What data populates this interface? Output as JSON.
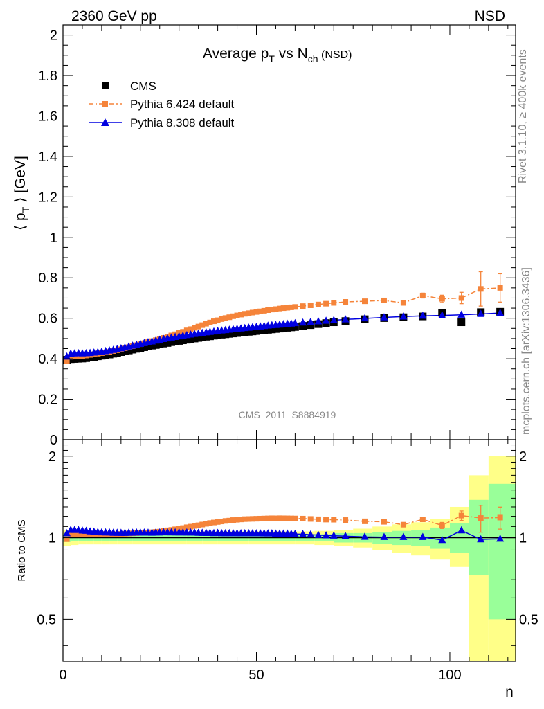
{
  "header": {
    "energy": "2360 GeV pp",
    "process": "NSD",
    "plot_title_main": "Average p",
    "plot_title_sub1": "T",
    "plot_title_mid": " vs N",
    "plot_title_sub2": "ch",
    "plot_title_tail": " (NSD)",
    "rivet_label": "Rivet 3.1.10, ≥ 400k events",
    "source_label": "mcplots.cern.ch [arXiv:1306.3436]",
    "analysis_id": "CMS_2011_S8884919"
  },
  "axes": {
    "main_ylabel": "⟨ p",
    "main_ylabel_sub": "T",
    "main_ylabel_tail": " ⟩ [GeV]",
    "ratio_ylabel": "Ratio to CMS",
    "xlabel": "n",
    "main_ylim": [
      0,
      2.05
    ],
    "ratio_ylim": [
      0.35,
      2.3
    ],
    "xlim": [
      0,
      117
    ],
    "main_yticks": [
      "0",
      "0.2",
      "0.4",
      "0.6",
      "0.8",
      "1",
      "1.2",
      "1.4",
      "1.6",
      "1.8",
      "2"
    ],
    "ratio_yticks": [
      "0.5",
      "1",
      "2"
    ],
    "xticks": [
      "0",
      "50",
      "100"
    ]
  },
  "legend": {
    "cms": "CMS",
    "py6": "Pythia 6.424 default",
    "py8": "Pythia 8.308 default"
  },
  "colors": {
    "cms": "#000000",
    "py6": "#f5843a",
    "py8": "#0000e0",
    "band_inner": "#99ff99",
    "band_outer": "#ffff88"
  },
  "chart_data": {
    "type": "scatter",
    "main": {
      "x_range": [
        0,
        117
      ],
      "y_range": [
        0,
        2.05
      ],
      "series": [
        {
          "name": "CMS",
          "x": [
            1,
            2,
            3,
            4,
            5,
            6,
            7,
            8,
            9,
            10,
            11,
            12,
            13,
            14,
            15,
            16,
            17,
            18,
            19,
            20,
            21,
            22,
            23,
            24,
            25,
            26,
            27,
            28,
            29,
            30,
            31,
            32,
            33,
            34,
            35,
            36,
            37,
            38,
            39,
            40,
            41,
            42,
            43,
            44,
            45,
            46,
            47,
            48,
            49,
            50,
            51,
            52,
            53,
            54,
            55,
            56,
            57,
            58,
            59,
            60,
            62,
            64,
            66,
            68,
            70,
            73,
            78,
            83,
            88,
            93,
            98,
            103,
            108,
            113
          ],
          "y": [
            0.395,
            0.398,
            0.399,
            0.4,
            0.401,
            0.403,
            0.406,
            0.409,
            0.412,
            0.415,
            0.418,
            0.421,
            0.425,
            0.429,
            0.433,
            0.437,
            0.441,
            0.445,
            0.449,
            0.453,
            0.457,
            0.461,
            0.465,
            0.468,
            0.472,
            0.475,
            0.478,
            0.482,
            0.485,
            0.488,
            0.491,
            0.494,
            0.497,
            0.5,
            0.503,
            0.506,
            0.509,
            0.511,
            0.514,
            0.516,
            0.519,
            0.521,
            0.523,
            0.525,
            0.527,
            0.529,
            0.531,
            0.533,
            0.535,
            0.537,
            0.539,
            0.541,
            0.543,
            0.545,
            0.547,
            0.549,
            0.551,
            0.553,
            0.555,
            0.557,
            0.561,
            0.566,
            0.571,
            0.576,
            0.58,
            0.586,
            0.595,
            0.601,
            0.605,
            0.609,
            0.627,
            0.58,
            0.63,
            0.632
          ]
        },
        {
          "name": "Pythia 6.424 default",
          "x": [
            1,
            2,
            3,
            4,
            5,
            6,
            7,
            8,
            9,
            10,
            11,
            12,
            13,
            14,
            15,
            16,
            17,
            18,
            19,
            20,
            21,
            22,
            23,
            24,
            25,
            26,
            27,
            28,
            29,
            30,
            31,
            32,
            33,
            34,
            35,
            36,
            37,
            38,
            39,
            40,
            41,
            42,
            43,
            44,
            45,
            46,
            47,
            48,
            49,
            50,
            51,
            52,
            53,
            54,
            55,
            56,
            57,
            58,
            59,
            60,
            62,
            64,
            66,
            68,
            70,
            73,
            78,
            83,
            88,
            93,
            98,
            103,
            108,
            113
          ],
          "y": [
            0.39,
            0.41,
            0.412,
            0.413,
            0.414,
            0.416,
            0.419,
            0.422,
            0.425,
            0.428,
            0.431,
            0.434,
            0.438,
            0.442,
            0.447,
            0.452,
            0.457,
            0.462,
            0.467,
            0.472,
            0.477,
            0.482,
            0.487,
            0.492,
            0.497,
            0.503,
            0.509,
            0.515,
            0.521,
            0.527,
            0.533,
            0.54,
            0.546,
            0.553,
            0.559,
            0.566,
            0.573,
            0.579,
            0.585,
            0.59,
            0.596,
            0.601,
            0.605,
            0.61,
            0.614,
            0.618,
            0.622,
            0.625,
            0.628,
            0.631,
            0.634,
            0.637,
            0.64,
            0.643,
            0.645,
            0.648,
            0.65,
            0.652,
            0.654,
            0.656,
            0.66,
            0.664,
            0.668,
            0.672,
            0.676,
            0.681,
            0.684,
            0.688,
            0.676,
            0.712,
            0.696,
            0.7,
            0.745,
            0.75
          ],
          "yerr": [
            0.004,
            0.003,
            0.003,
            0.003,
            0.003,
            0.003,
            0.003,
            0.003,
            0.003,
            0.003,
            0.003,
            0.003,
            0.003,
            0.003,
            0.003,
            0.003,
            0.003,
            0.003,
            0.003,
            0.003,
            0.003,
            0.003,
            0.003,
            0.003,
            0.003,
            0.003,
            0.003,
            0.003,
            0.003,
            0.003,
            0.003,
            0.003,
            0.003,
            0.003,
            0.003,
            0.003,
            0.003,
            0.003,
            0.003,
            0.003,
            0.003,
            0.003,
            0.003,
            0.003,
            0.003,
            0.003,
            0.003,
            0.003,
            0.003,
            0.003,
            0.003,
            0.003,
            0.003,
            0.003,
            0.003,
            0.003,
            0.003,
            0.003,
            0.003,
            0.003,
            0.004,
            0.004,
            0.004,
            0.005,
            0.005,
            0.005,
            0.006,
            0.007,
            0.009,
            0.012,
            0.018,
            0.028,
            0.085,
            0.07
          ]
        },
        {
          "name": "Pythia 8.308 default",
          "x": [
            1,
            2,
            3,
            4,
            5,
            6,
            7,
            8,
            9,
            10,
            11,
            12,
            13,
            14,
            15,
            16,
            17,
            18,
            19,
            20,
            21,
            22,
            23,
            24,
            25,
            26,
            27,
            28,
            29,
            30,
            31,
            32,
            33,
            34,
            35,
            36,
            37,
            38,
            39,
            40,
            41,
            42,
            43,
            44,
            45,
            46,
            47,
            48,
            49,
            50,
            51,
            52,
            53,
            54,
            55,
            56,
            57,
            58,
            59,
            60,
            62,
            64,
            66,
            68,
            70,
            73,
            78,
            83,
            88,
            93,
            98,
            103,
            108,
            113
          ],
          "y": [
            0.41,
            0.425,
            0.426,
            0.427,
            0.426,
            0.427,
            0.428,
            0.43,
            0.432,
            0.434,
            0.437,
            0.44,
            0.443,
            0.447,
            0.451,
            0.455,
            0.46,
            0.464,
            0.469,
            0.473,
            0.477,
            0.481,
            0.485,
            0.489,
            0.493,
            0.497,
            0.5,
            0.504,
            0.507,
            0.51,
            0.513,
            0.516,
            0.519,
            0.522,
            0.524,
            0.527,
            0.53,
            0.532,
            0.534,
            0.537,
            0.539,
            0.541,
            0.543,
            0.545,
            0.547,
            0.549,
            0.551,
            0.553,
            0.555,
            0.557,
            0.559,
            0.561,
            0.563,
            0.565,
            0.566,
            0.568,
            0.57,
            0.572,
            0.573,
            0.575,
            0.578,
            0.581,
            0.584,
            0.587,
            0.59,
            0.594,
            0.599,
            0.604,
            0.608,
            0.612,
            0.614,
            0.617,
            0.621,
            0.626
          ]
        }
      ]
    },
    "ratio": {
      "x_range": [
        0,
        117
      ],
      "y_range": [
        0.35,
        2.3
      ],
      "reference_line": 1,
      "bands": {
        "edges": [
          0,
          2,
          4,
          6,
          8,
          10,
          12,
          14,
          16,
          18,
          20,
          24,
          28,
          32,
          36,
          40,
          44,
          48,
          52,
          56,
          60,
          65,
          70,
          75,
          80,
          85,
          90,
          95,
          100,
          105,
          110,
          117
        ],
        "inner_low": [
          0.965,
          0.97,
          0.97,
          0.97,
          0.97,
          0.97,
          0.97,
          0.97,
          0.97,
          0.97,
          0.97,
          0.97,
          0.97,
          0.97,
          0.97,
          0.97,
          0.97,
          0.97,
          0.97,
          0.97,
          0.97,
          0.97,
          0.96,
          0.96,
          0.95,
          0.94,
          0.93,
          0.91,
          0.88,
          0.73,
          0.5,
          0.5
        ],
        "inner_high": [
          1.035,
          1.03,
          1.03,
          1.03,
          1.03,
          1.03,
          1.03,
          1.03,
          1.03,
          1.03,
          1.03,
          1.03,
          1.03,
          1.03,
          1.03,
          1.03,
          1.03,
          1.03,
          1.03,
          1.03,
          1.03,
          1.03,
          1.04,
          1.04,
          1.05,
          1.06,
          1.07,
          1.09,
          1.13,
          1.38,
          1.58,
          1.58
        ],
        "outer_low": [
          0.93,
          0.94,
          0.945,
          0.945,
          0.945,
          0.945,
          0.945,
          0.945,
          0.945,
          0.945,
          0.945,
          0.945,
          0.945,
          0.945,
          0.945,
          0.945,
          0.945,
          0.945,
          0.945,
          0.945,
          0.945,
          0.94,
          0.93,
          0.92,
          0.9,
          0.88,
          0.86,
          0.83,
          0.78,
          0.35,
          0.35,
          0.35
        ],
        "outer_high": [
          1.07,
          1.06,
          1.055,
          1.055,
          1.055,
          1.055,
          1.055,
          1.055,
          1.055,
          1.055,
          1.055,
          1.055,
          1.055,
          1.055,
          1.055,
          1.055,
          1.055,
          1.055,
          1.055,
          1.055,
          1.055,
          1.06,
          1.07,
          1.08,
          1.1,
          1.12,
          1.14,
          1.17,
          1.3,
          1.7,
          2.0,
          2.0
        ]
      }
    }
  }
}
